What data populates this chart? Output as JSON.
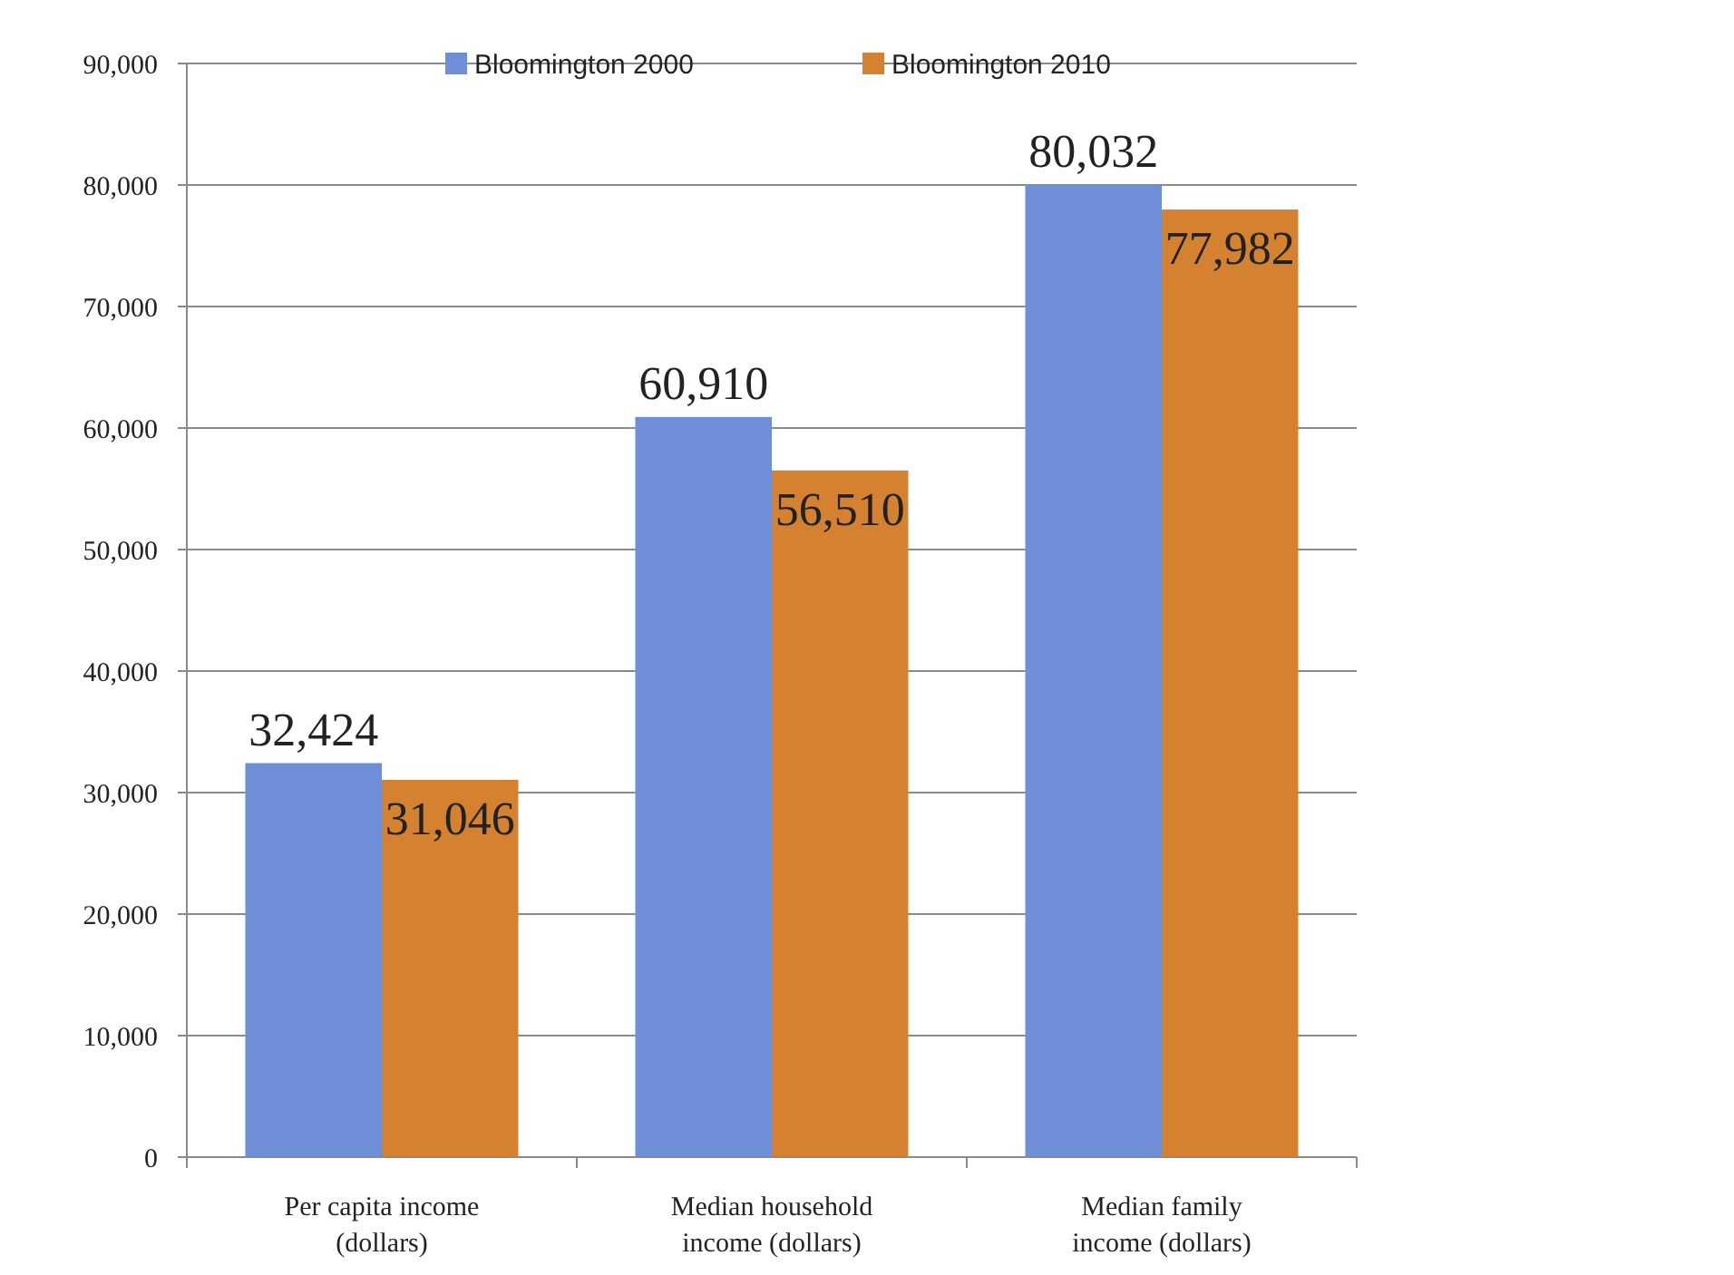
{
  "chart_data": {
    "type": "bar",
    "categories": [
      "Per capita income (dollars)",
      "Median household income (dollars)",
      "Median family income (dollars)"
    ],
    "series": [
      {
        "name": "Bloomington 2000",
        "color": "#6f8ed8",
        "values": [
          32424,
          60910,
          80032
        ],
        "value_labels": [
          "32,424",
          "60,910",
          "80,032"
        ]
      },
      {
        "name": "Bloomington 2010",
        "color": "#d4822f",
        "values": [
          31046,
          56510,
          77982
        ],
        "value_labels": [
          "31,046",
          "56,510",
          "77,982"
        ]
      }
    ],
    "ylim": [
      0,
      90000
    ],
    "yticks": [
      {
        "value": 0,
        "label": "0"
      },
      {
        "value": 10000,
        "label": "10,000"
      },
      {
        "value": 20000,
        "label": "20,000"
      },
      {
        "value": 30000,
        "label": "30,000"
      },
      {
        "value": 40000,
        "label": "40,000"
      },
      {
        "value": 50000,
        "label": "50,000"
      },
      {
        "value": 60000,
        "label": "60,000"
      },
      {
        "value": 70000,
        "label": "70,000"
      },
      {
        "value": 80000,
        "label": "80,000"
      },
      {
        "value": 90000,
        "label": "90,000"
      }
    ],
    "grid": "y",
    "legend": "top"
  }
}
